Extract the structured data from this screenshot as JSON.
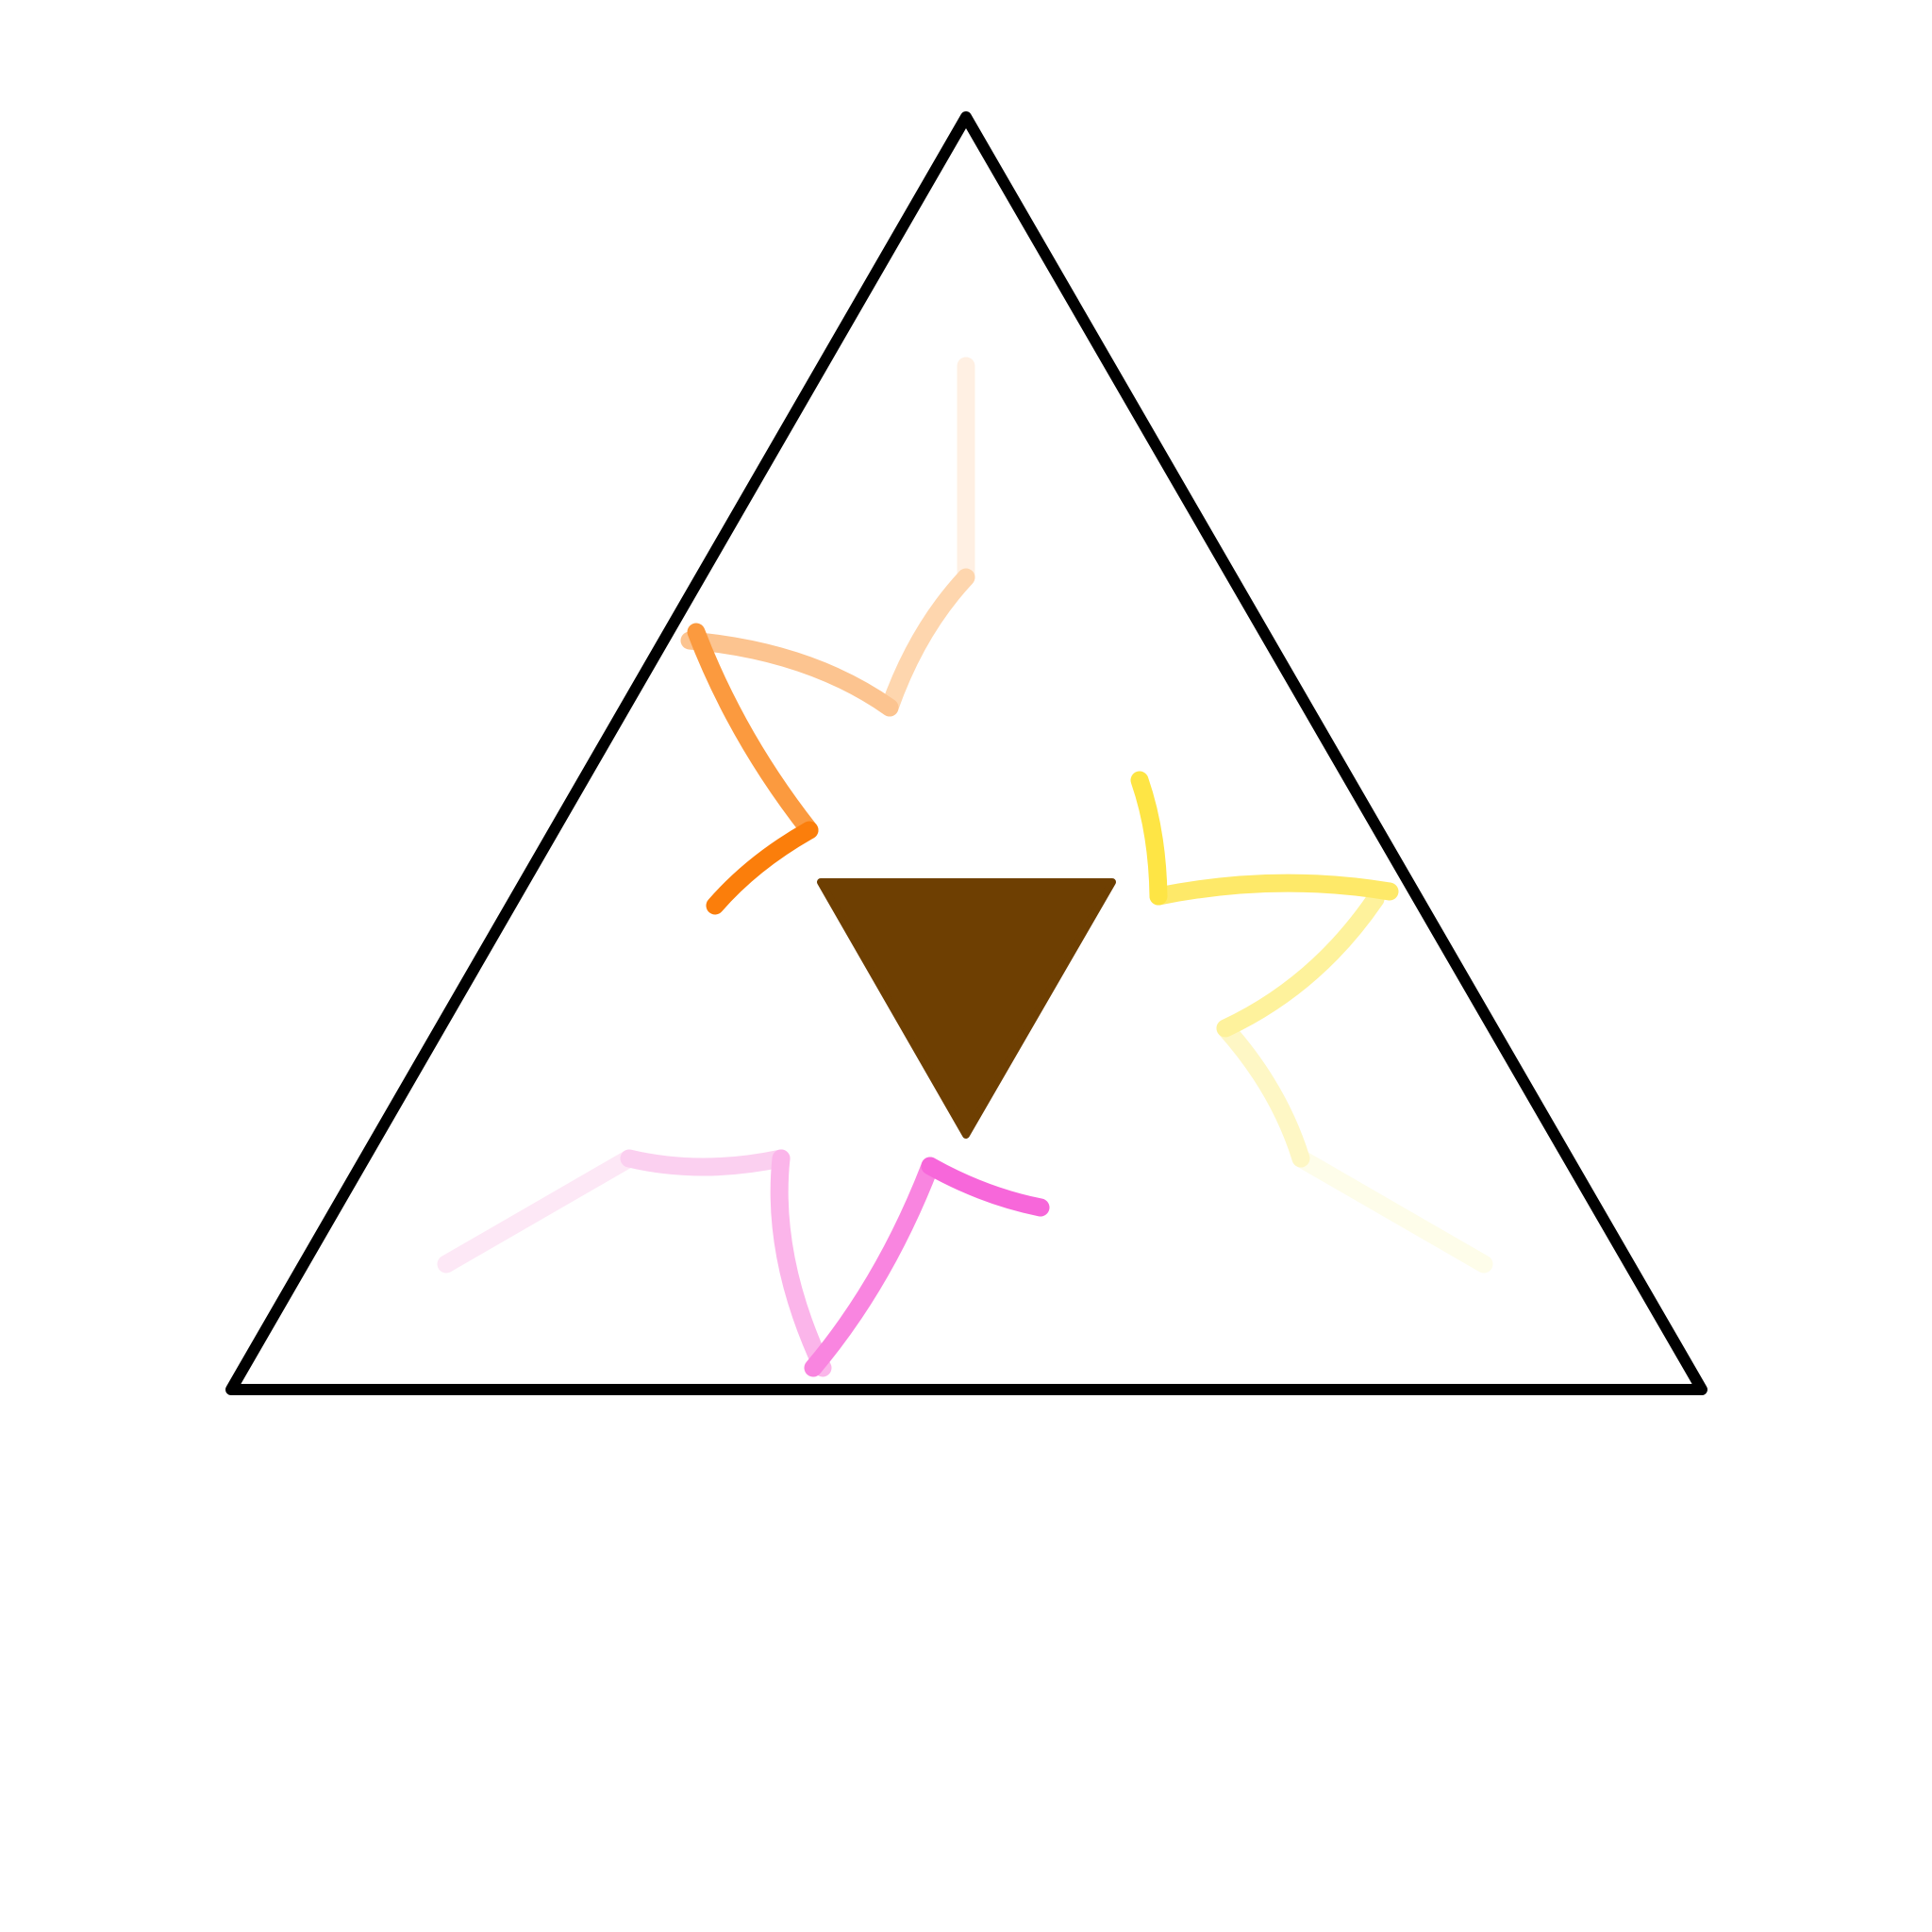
{
  "figure": {
    "background": "#ffffff",
    "outline_color": "#000000",
    "center_color": "#6e3f02"
  },
  "arms": [
    {
      "name": "orange",
      "colors": [
        "#fff0e3",
        "#fed6ae",
        "#fcc490",
        "#fb9a3f",
        "#fb7e0b"
      ]
    },
    {
      "name": "yellow",
      "colors": [
        "#fefdea",
        "#fef7c5",
        "#fef29c",
        "#fee969",
        "#fee545"
      ]
    },
    {
      "name": "pink",
      "colors": [
        "#fde8f6",
        "#fbd0f0",
        "#fbb5ea",
        "#f985e0",
        "#f767da"
      ]
    }
  ]
}
